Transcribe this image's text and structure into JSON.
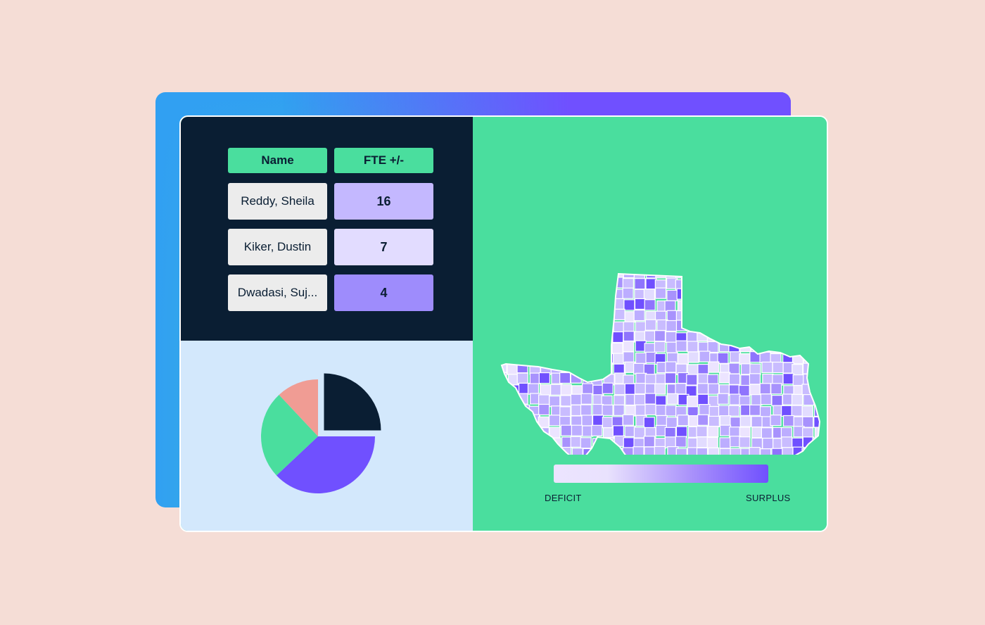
{
  "table": {
    "headers": [
      "Name",
      "FTE +/-"
    ],
    "rows": [
      {
        "name": "Reddy, Sheila",
        "fte": "16",
        "color": "#c4b8ff"
      },
      {
        "name": "Kiker, Dustin",
        "fte": "7",
        "color": "#e2dcff"
      },
      {
        "name": "Dwadasi, Suj...",
        "fte": "4",
        "color": "#9e8cfc"
      }
    ]
  },
  "chart_data": {
    "type": "pie",
    "slices": [
      {
        "value": 25,
        "color": "#0a1e33",
        "exploded": true
      },
      {
        "value": 38,
        "color": "#7050ff"
      },
      {
        "value": 25,
        "color": "#4ade9e"
      },
      {
        "value": 12,
        "color": "#f09c94"
      }
    ]
  },
  "map": {
    "legend": {
      "low_label": "DEFICIT",
      "high_label": "SURPLUS"
    },
    "colors": {
      "low": "#ece4ff",
      "high": "#7050ff",
      "border": "#ffffff"
    }
  }
}
